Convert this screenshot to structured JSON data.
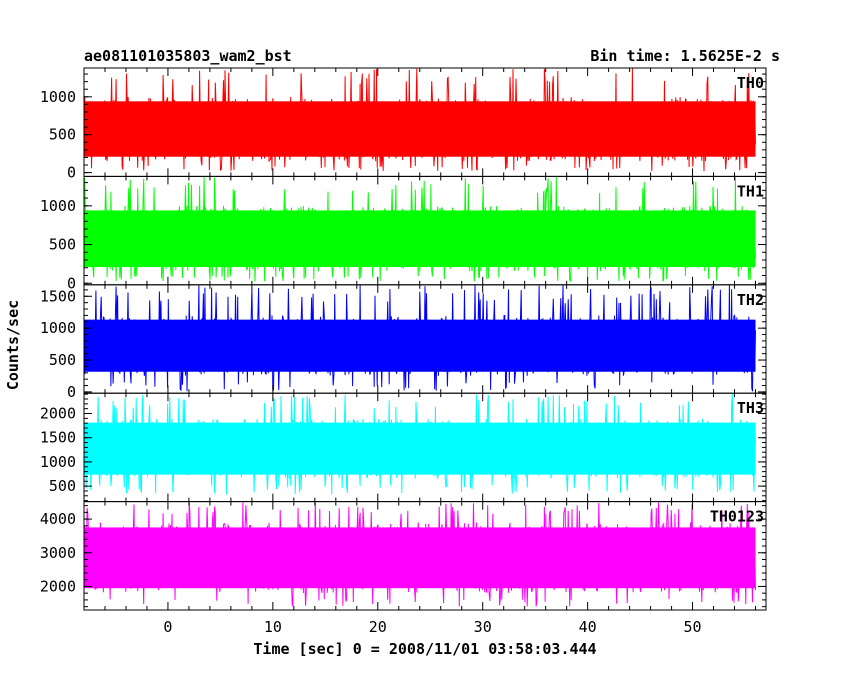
{
  "chart_data": {
    "type": "line",
    "title_left": "ae081101035803_wam2_bst",
    "title_right": "Bin time: 1.5625E-2 s",
    "xlabel": "Time [sec] 0 = 2008/11/01 03:58:03.444",
    "ylabel": "Counts/sec",
    "xlim": [
      -8,
      57
    ],
    "x_range": [
      -8,
      56
    ],
    "x_ticks": [
      0,
      10,
      20,
      30,
      40,
      50
    ],
    "panels": [
      {
        "name": "TH0",
        "color": "#ff0000",
        "ylim": [
          -50,
          1380
        ],
        "y_ticks": [
          0,
          500,
          1000
        ],
        "typical_range": [
          150,
          1000
        ],
        "extremes": [
          20,
          1380
        ]
      },
      {
        "name": "TH1",
        "color": "#00ff00",
        "ylim": [
          -20,
          1380
        ],
        "y_ticks": [
          0,
          500,
          1000
        ],
        "typical_range": [
          150,
          1000
        ],
        "extremes": [
          20,
          1380
        ]
      },
      {
        "name": "TH2",
        "color": "#0000ff",
        "ylim": [
          -20,
          1680
        ],
        "y_ticks": [
          0,
          500,
          1000,
          1500
        ],
        "typical_range": [
          250,
          1200
        ],
        "extremes": [
          10,
          1680
        ]
      },
      {
        "name": "TH3",
        "color": "#00ffff",
        "ylim": [
          180,
          2420
        ],
        "y_ticks": [
          500,
          1000,
          1500,
          2000
        ],
        "typical_range": [
          650,
          1900
        ],
        "extremes": [
          330,
          2420
        ]
      },
      {
        "name": "TH0123",
        "color": "#ff00ff",
        "ylim": [
          1300,
          4520
        ],
        "y_ticks": [
          2000,
          3000,
          4000
        ],
        "typical_range": [
          1800,
          3900
        ],
        "extremes": [
          1400,
          4520
        ]
      }
    ]
  }
}
